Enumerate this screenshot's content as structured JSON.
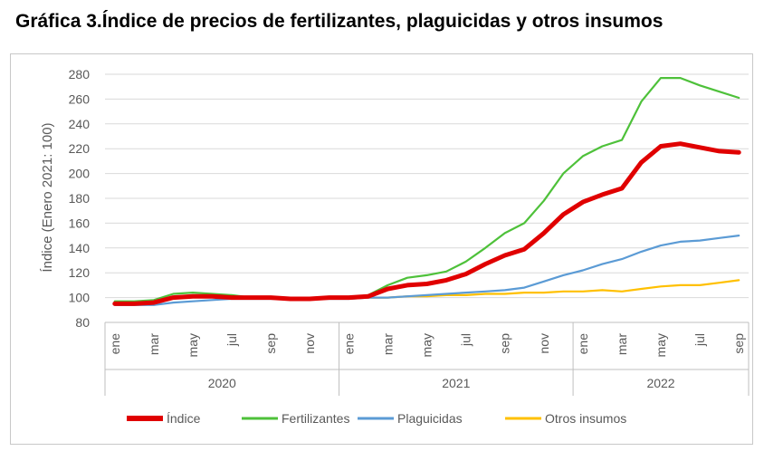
{
  "title": "Gráfica 3.Índice de precios de fertilizantes, plaguicidas y otros insumos",
  "chart_data": {
    "type": "line",
    "ylabel": "Índice (Enero 2021: 100)",
    "ylim": [
      80,
      280
    ],
    "yticks": [
      80,
      100,
      120,
      140,
      160,
      180,
      200,
      220,
      240,
      260,
      280
    ],
    "grid": true,
    "x_labels": [
      "ene",
      "",
      "mar",
      "",
      "may",
      "",
      "jul",
      "",
      "sep",
      "",
      "nov",
      "",
      "ene",
      "",
      "mar",
      "",
      "may",
      "",
      "jul",
      "",
      "sep",
      "",
      "nov",
      "",
      "ene",
      "",
      "mar",
      "",
      "may",
      "",
      "jul",
      "",
      "sep"
    ],
    "years": [
      {
        "label": "2020",
        "start": 0,
        "end": 11
      },
      {
        "label": "2021",
        "start": 12,
        "end": 23
      },
      {
        "label": "2022",
        "start": 24,
        "end": 32
      }
    ],
    "legend_position": "bottom",
    "series": [
      {
        "name": "Índice",
        "color": "#e00000",
        "width": 5,
        "values": [
          95,
          95,
          96,
          100,
          101,
          101,
          100,
          100,
          100,
          99,
          99,
          100,
          100,
          101,
          107,
          110,
          111,
          114,
          119,
          127,
          134,
          139,
          152,
          167,
          177,
          183,
          188,
          209,
          222,
          224,
          221,
          218,
          217
        ]
      },
      {
        "name": "Fertilizantes",
        "color": "#4ec13a",
        "width": 2.2,
        "values": [
          97,
          97,
          98,
          103,
          104,
          103,
          102,
          100,
          100,
          99,
          99,
          100,
          100,
          102,
          110,
          116,
          118,
          121,
          129,
          140,
          152,
          160,
          178,
          200,
          214,
          222,
          227,
          258,
          277,
          277,
          271,
          266,
          261
        ]
      },
      {
        "name": "Plaguicidas",
        "color": "#5b9bd5",
        "width": 2.2,
        "values": [
          94,
          94,
          94,
          96,
          97,
          98,
          99,
          99,
          99,
          99,
          99,
          99,
          99,
          100,
          100,
          101,
          102,
          103,
          104,
          105,
          106,
          108,
          113,
          118,
          122,
          127,
          131,
          137,
          142,
          145,
          146,
          148,
          150
        ]
      },
      {
        "name": "Otros insumos",
        "color": "#ffc000",
        "width": 2.2,
        "values": [
          null,
          null,
          null,
          null,
          null,
          null,
          null,
          null,
          null,
          null,
          null,
          null,
          100,
          100,
          100,
          101,
          101,
          102,
          102,
          103,
          103,
          104,
          104,
          105,
          105,
          106,
          105,
          107,
          109,
          110,
          110,
          112,
          114
        ]
      }
    ]
  }
}
